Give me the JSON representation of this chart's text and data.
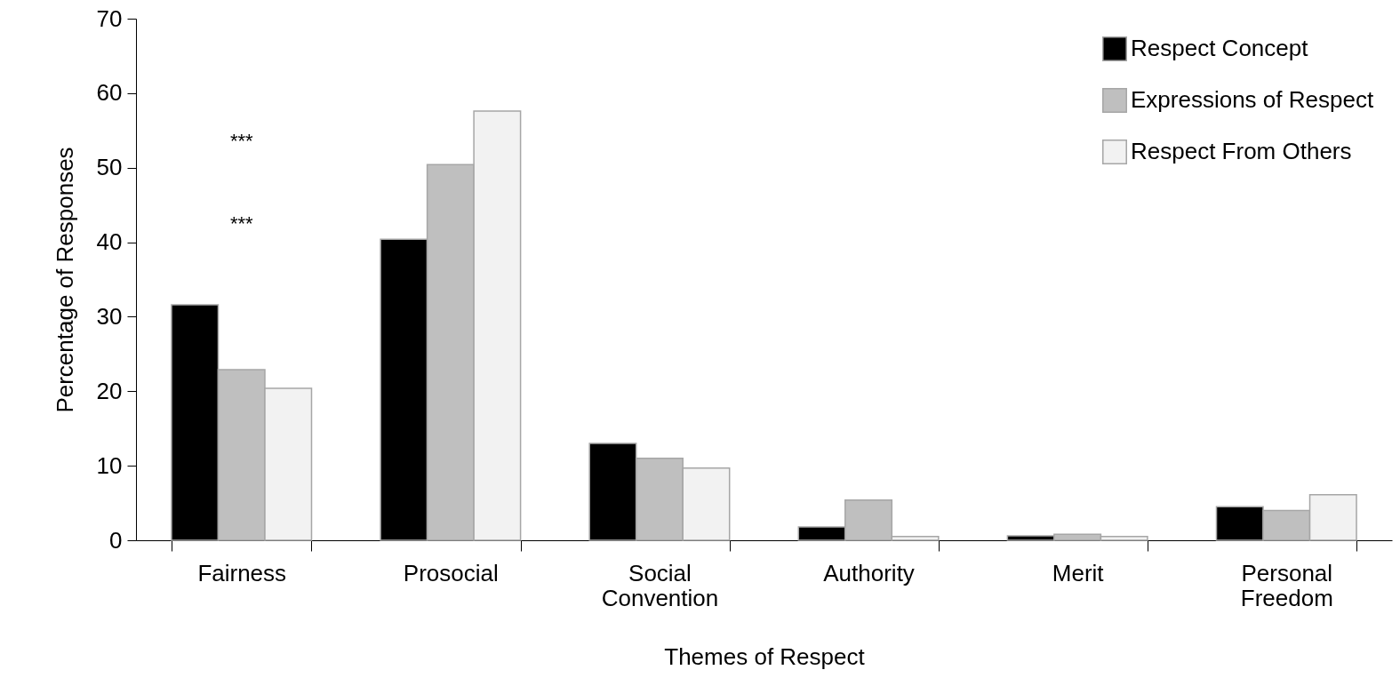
{
  "chart_data": {
    "type": "bar",
    "xlabel": "Themes of Respect",
    "ylabel": "Percentage of Responses",
    "categories": [
      "Fairness",
      "Prosocial",
      "Social Convention",
      "Authority",
      "Merit",
      "Personal Freedom"
    ],
    "series": [
      {
        "name": "Respect Concept",
        "color": "#000000",
        "values": [
          31.6,
          40.4,
          13.0,
          1.8,
          0.6,
          4.5
        ]
      },
      {
        "name": "Expressions of Respect",
        "color": "#bfbfbf",
        "values": [
          22.9,
          50.4,
          11.0,
          5.4,
          0.8,
          4.0
        ]
      },
      {
        "name": "Respect From Others",
        "color": "#f2f2f2",
        "values": [
          20.4,
          57.6,
          9.7,
          0.5,
          0.5,
          6.1
        ]
      }
    ],
    "ylim": [
      0,
      70
    ],
    "yticks": [
      0,
      10,
      20,
      30,
      40,
      50,
      60,
      70
    ],
    "grid": false,
    "legend": "top right",
    "annotations": [
      "***",
      "***"
    ]
  }
}
